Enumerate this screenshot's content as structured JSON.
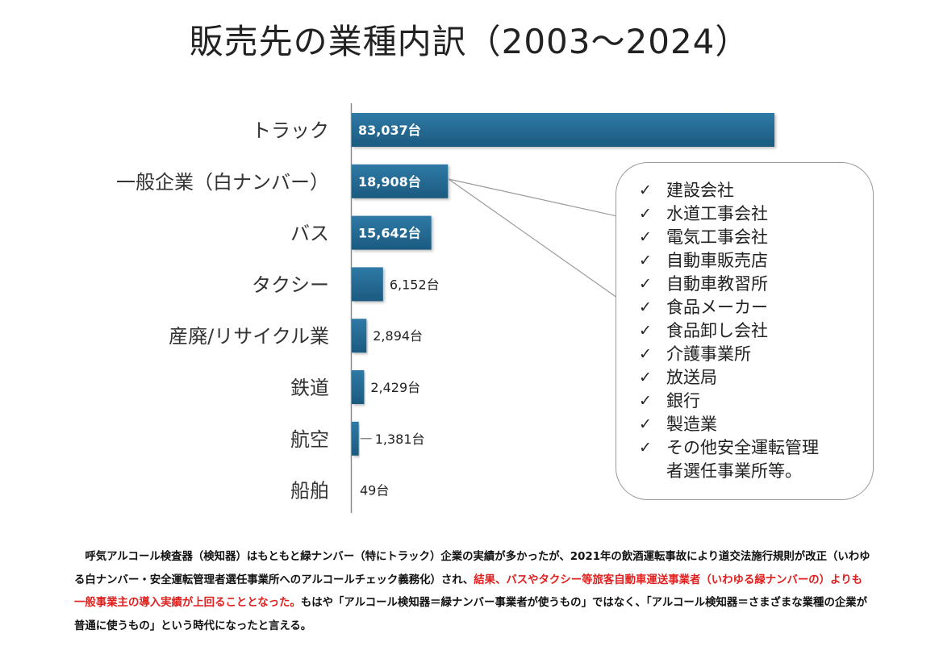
{
  "title": "販売先の業種内訳（2003〜2024）",
  "chart_data": {
    "type": "bar",
    "orientation": "horizontal",
    "categories": [
      "トラック",
      "一般企業（白ナンバー）",
      "バス",
      "タクシー",
      "産廃/リサイクル業",
      "鉄道",
      "航空",
      "船舶"
    ],
    "values": [
      83037,
      18908,
      15642,
      6152,
      2894,
      2429,
      1381,
      49
    ],
    "value_labels": [
      "83,037台",
      "18,908台",
      "15,642台",
      "6,152台",
      "2,894台",
      "2,429台",
      "1,381台",
      "49台"
    ],
    "labels_inside": [
      true,
      true,
      true,
      false,
      false,
      false,
      false,
      false
    ],
    "xlim": [
      0,
      84000
    ],
    "bar_color": "#1c5a80",
    "bar_color_light": "#2e7aa6"
  },
  "callout": {
    "items": [
      "建設会社",
      "水道工事会社",
      "電気工事会社",
      "自動車販売店",
      "自動車教習所",
      "食品メーカー",
      "食品卸し会社",
      "介護事業所",
      "放送局",
      "銀行",
      "製造業",
      "その他安全運転管理\n者選任事業所等。"
    ],
    "check_glyph": "✓"
  },
  "note": {
    "part1": "呼気アルコール検査器（検知器）はもともと緑ナンバー（特にトラック）企業の実績が多かったが、2021年の飲酒運転事故により道交法施行規則が改正（いわゆる白ナンバー・安全運転管理者選任事業所へのアルコールチェック義務化）され、",
    "highlight": "結果、バスやタクシー等旅客自動車運送事業者（いわゆる緑ナンバーの）よりも一般事業主の導入実績が上回ることとなった。",
    "part2": "もはや「アルコール検知器＝緑ナンバー事業者が使うもの」ではなく、「アルコール検知器＝さまざまな業種の企業が普通に使うもの」という時代になったと言える。",
    "highlight_color": "#e0201e"
  }
}
